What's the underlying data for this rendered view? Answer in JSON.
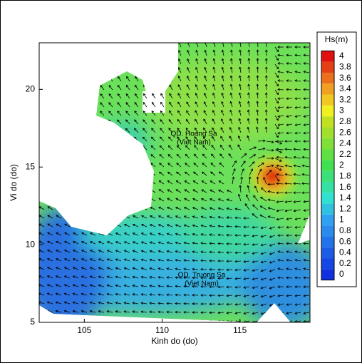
{
  "chart_data": {
    "type": "map",
    "x_label": "Kinh do (do)",
    "y_label": "Vi do (do)",
    "xlim": [
      102.1,
      119.5
    ],
    "xticks": [
      105,
      110,
      115
    ],
    "ylim": [
      5,
      23
    ],
    "yticks": [
      5,
      10,
      15,
      20
    ],
    "annotations": [
      "QD. Hoang Sa",
      "(Viet Nam)",
      "QD. Truong Sa",
      "(Viet Nam)"
    ],
    "colorbar": {
      "title": "Hs(m)",
      "ticks": [
        0,
        0.2,
        0.4,
        0.6,
        0.8,
        1,
        1.2,
        1.4,
        1.6,
        1.8,
        2,
        2.2,
        2.4,
        2.6,
        2.8,
        3,
        3.2,
        3.4,
        3.6,
        3.8,
        4
      ]
    }
  }
}
